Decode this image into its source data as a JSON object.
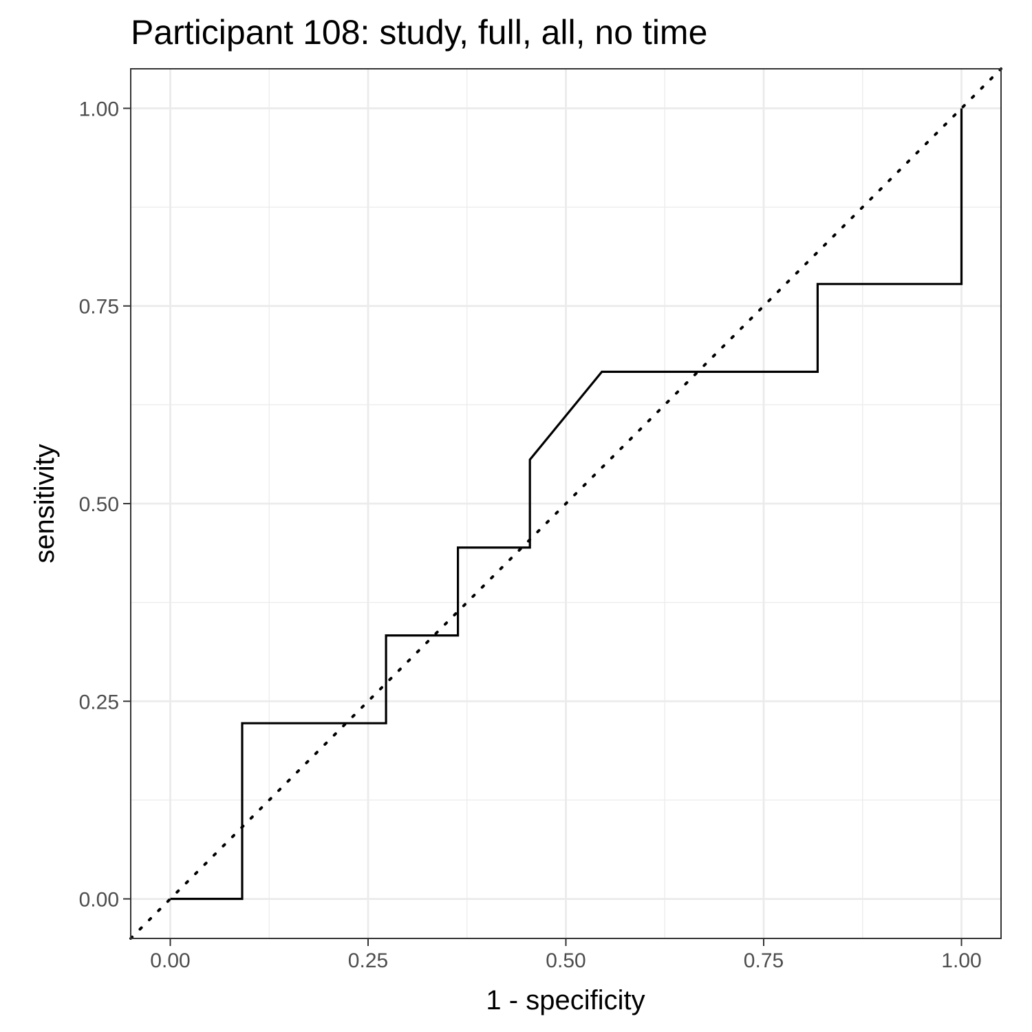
{
  "chart_data": {
    "type": "line",
    "title": "Participant 108: study, full, all, no time",
    "xlabel": "1 - specificity",
    "ylabel": "sensitivity",
    "xlim": [
      -0.05,
      1.05
    ],
    "ylim": [
      -0.05,
      1.05
    ],
    "x_ticks": [
      0,
      0.25,
      0.5,
      0.75,
      1
    ],
    "y_ticks": [
      0,
      0.25,
      0.5,
      0.75,
      1
    ],
    "x_tick_labels": [
      "0.00",
      "0.25",
      "0.50",
      "0.75",
      "1.00"
    ],
    "y_tick_labels": [
      "0.00",
      "0.25",
      "0.50",
      "0.75",
      "1.00"
    ],
    "grid": true,
    "series": [
      {
        "style": "solid",
        "color": "#000000",
        "points": [
          [
            0,
            0
          ],
          [
            0.0909,
            0
          ],
          [
            0.0909,
            0.2222
          ],
          [
            0.2727,
            0.2222
          ],
          [
            0.2727,
            0.3333
          ],
          [
            0.3636,
            0.3333
          ],
          [
            0.3636,
            0.4444
          ],
          [
            0.4545,
            0.4444
          ],
          [
            0.4545,
            0.5556
          ],
          [
            0.5455,
            0.6667
          ],
          [
            0.8182,
            0.6667
          ],
          [
            0.8182,
            0.7778
          ],
          [
            1,
            0.7778
          ],
          [
            1,
            1
          ]
        ]
      },
      {
        "style": "dotted",
        "color": "#000000",
        "points": [
          [
            -0.05,
            -0.05
          ],
          [
            1.05,
            1.05
          ]
        ]
      }
    ]
  }
}
